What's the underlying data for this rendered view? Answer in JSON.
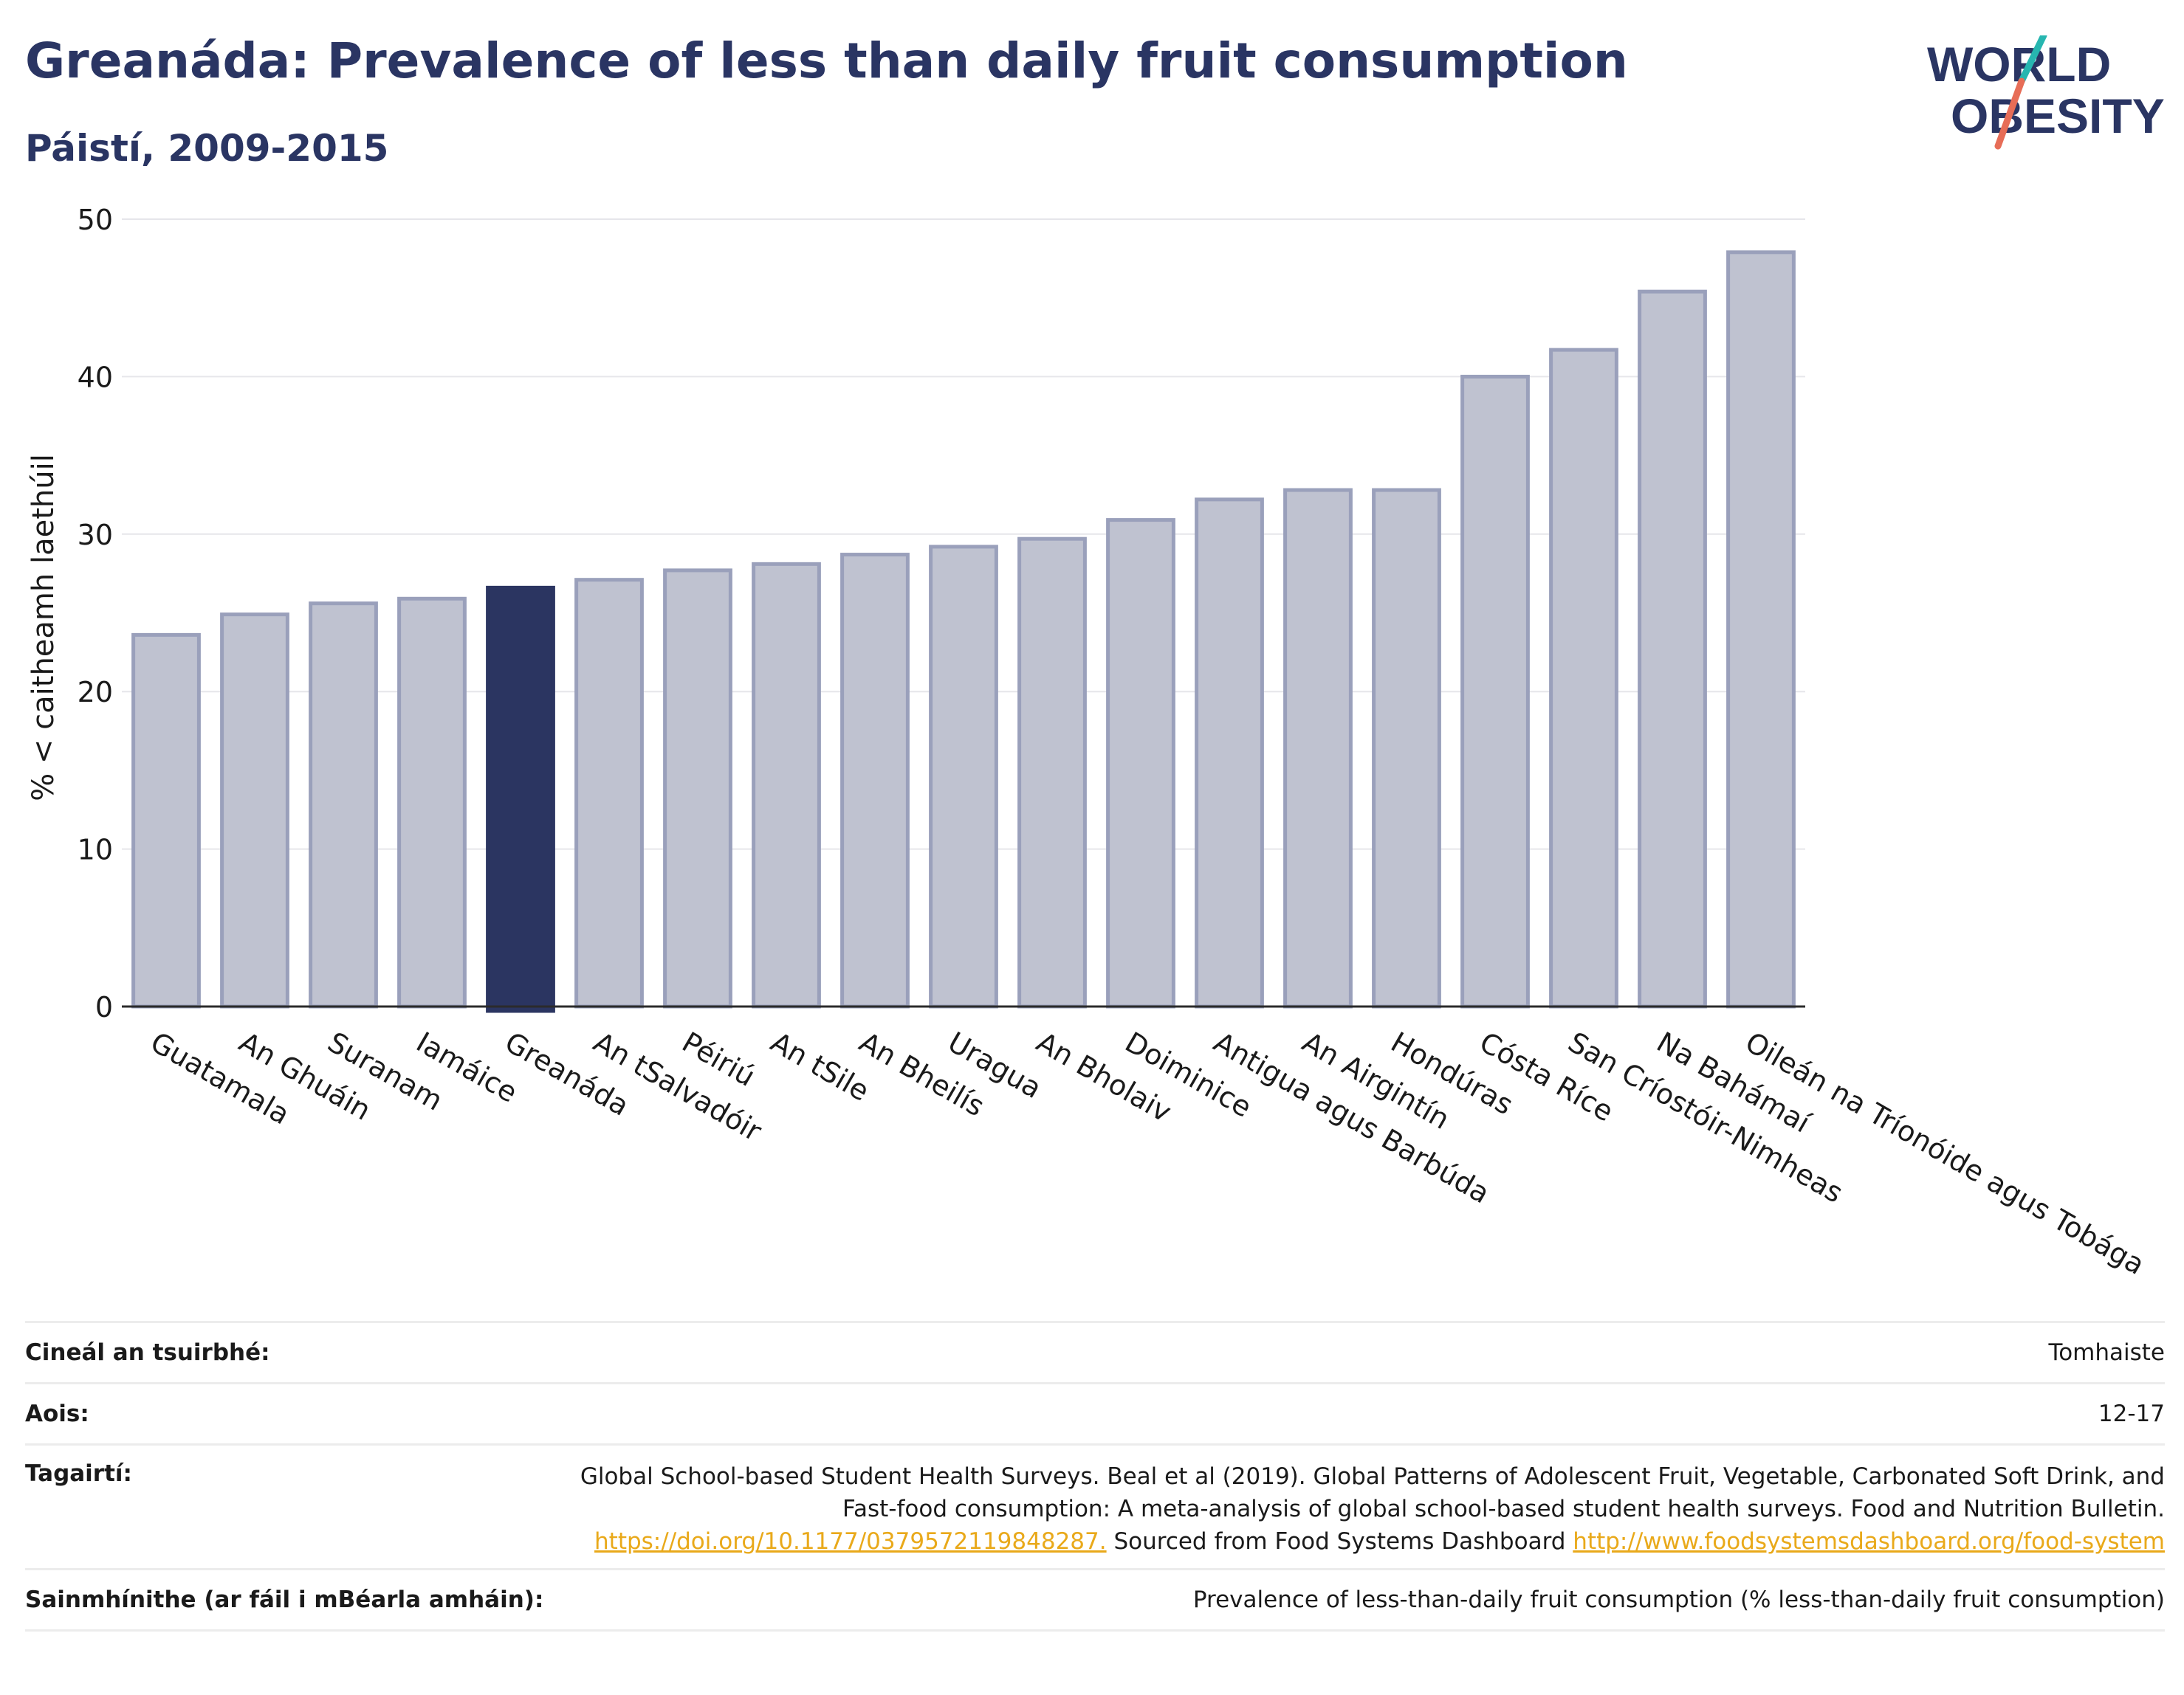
{
  "title": "Greanáda: Prevalence of less than daily fruit consumption",
  "subtitle": "Páistí, 2009-2015",
  "logo": {
    "line1": "WORLD",
    "line2": "OBESITY"
  },
  "colors": {
    "highlight": "#2b3561",
    "bar": "#bfc2d0",
    "bar_border": "#9aa0bb",
    "brand": "#2a3563",
    "slash_teal": "#27b6b0",
    "slash_coral": "#e76d57"
  },
  "chart_data": {
    "type": "bar",
    "ylabel": "% < caitheamh laethúil",
    "ylim": [
      0,
      50
    ],
    "yticks": [
      0,
      10,
      20,
      30,
      40,
      50
    ],
    "grid": true,
    "highlight": "Greanáda",
    "categories": [
      "Guatamala",
      "An Ghuáin",
      "Suranam",
      "Iamáice",
      "Greanáda",
      "An tSalvadóir",
      "Péiriú",
      "An tSile",
      "An Bheilís",
      "Uragua",
      "An Bholaiv",
      "Doiminice",
      "Antigua agus Barbúda",
      "An Airgintín",
      "Hondúras",
      "Cósta Ríce",
      "San Críostóir-Nimheas",
      "Na Bahámaí",
      "Oileán na Tríonóide agus Tobága"
    ],
    "values": [
      23.6,
      24.9,
      25.6,
      25.9,
      26.6,
      27.1,
      27.7,
      28.1,
      28.7,
      29.2,
      29.7,
      30.9,
      32.2,
      32.8,
      32.8,
      40.0,
      41.7,
      45.4,
      47.9
    ]
  },
  "info": {
    "survey_type": {
      "label": "Cineál an tsuirbhé:",
      "value": "Tomhaiste"
    },
    "age": {
      "label": "Aois:",
      "value": "12-17"
    },
    "references": {
      "label": "Tagairtí:",
      "text1": "Global School-based Student Health Surveys. Beal et al (2019). Global Patterns of Adolescent Fruit, Vegetable, Carbonated Soft Drink, and Fast-food consumption: A meta-analysis of global school-based student health surveys. Food and Nutrition Bulletin. ",
      "link1": "https://doi.org/10.1177/0379572119848287.",
      "text2": " Sourced from Food Systems Dashboard ",
      "link2": "http://www.foodsystemsdashboard.org/food-system"
    },
    "definitions": {
      "label": "Sainmhínithe (ar fáil i mBéarla amháin):",
      "value": "Prevalence of less-than-daily fruit consumption (% less-than-daily fruit consumption)"
    }
  }
}
